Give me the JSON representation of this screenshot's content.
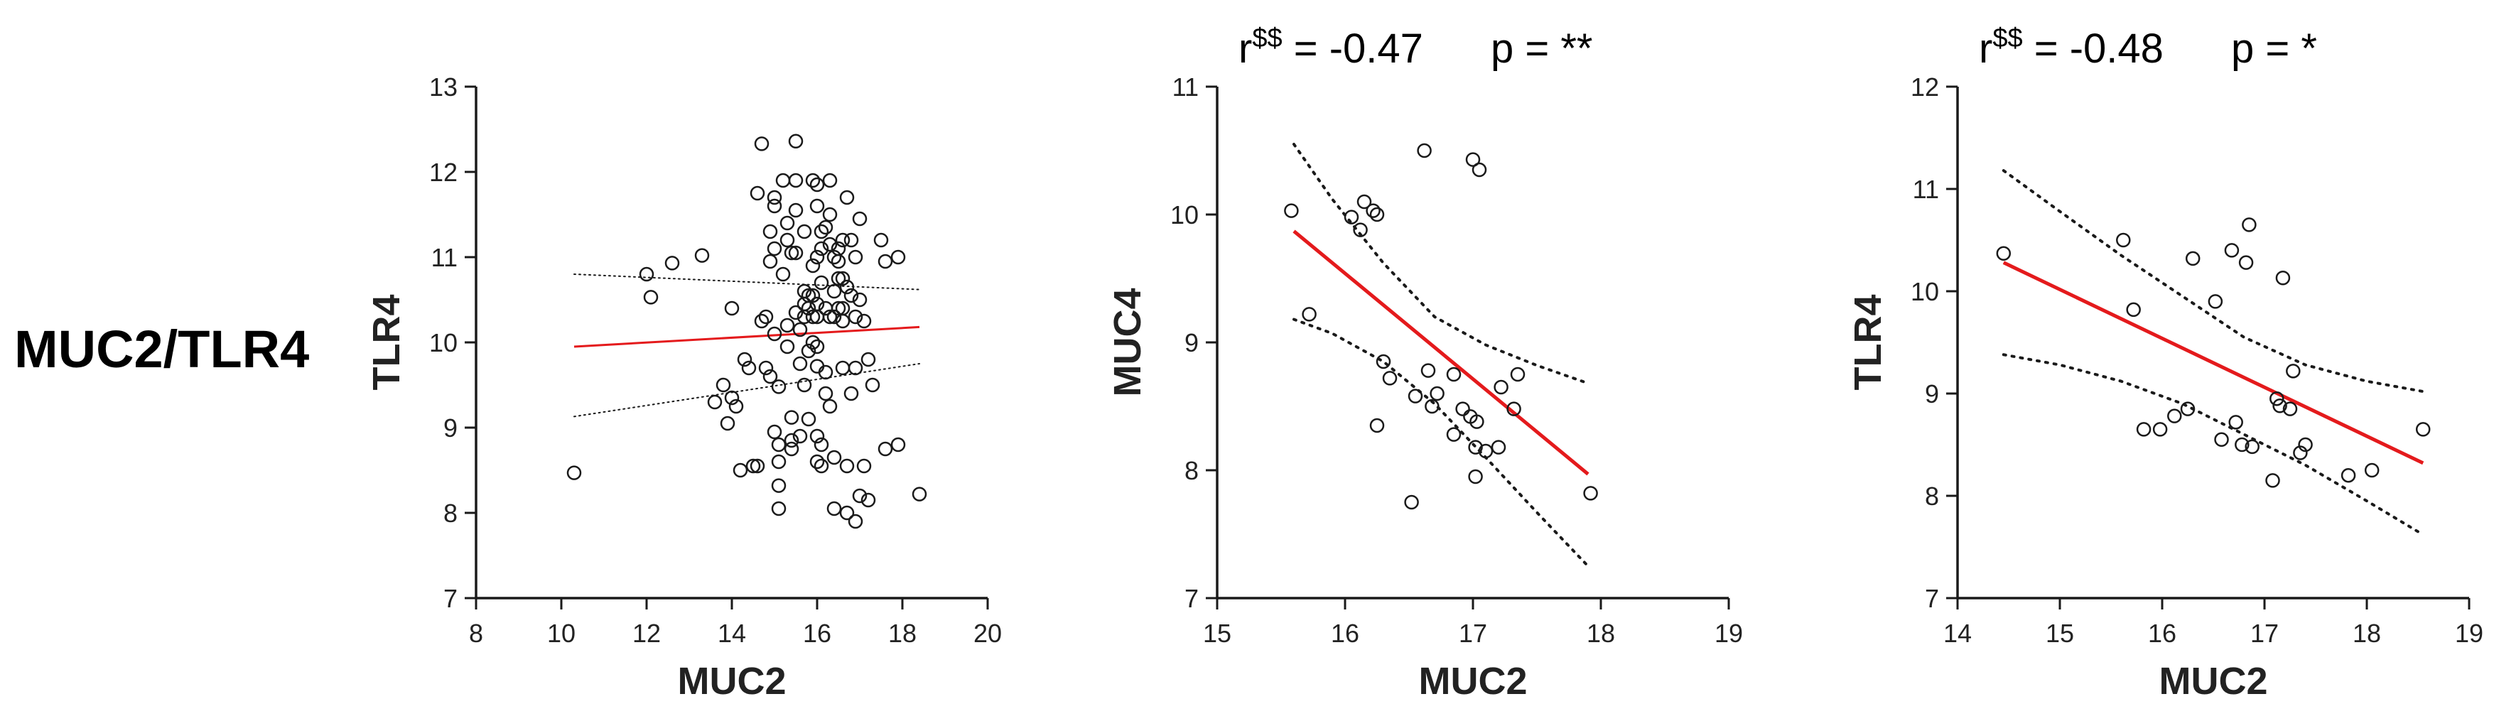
{
  "row_label": "MUC2/TLR4",
  "chart_data": [
    {
      "type": "scatter",
      "title": "",
      "xlabel": "MUC2",
      "ylabel": "TLR4",
      "xlim": [
        8,
        20
      ],
      "ylim": [
        7,
        13
      ],
      "xticks": [
        8,
        10,
        12,
        14,
        16,
        18,
        20
      ],
      "yticks": [
        7,
        8,
        9,
        10,
        11,
        12,
        13
      ],
      "regression": {
        "x": [
          10.3,
          18.4
        ],
        "y": [
          9.95,
          10.18
        ],
        "color": "#e41a1c",
        "thin": true
      },
      "confidence_band": {
        "upper": {
          "x": [
            10.3,
            18.4
          ],
          "y": [
            10.8,
            10.62
          ]
        },
        "lower": {
          "x": [
            10.3,
            18.4
          ],
          "y": [
            9.13,
            9.75
          ]
        }
      },
      "stats": null,
      "points": [
        [
          10.3,
          8.47
        ],
        [
          12.0,
          10.8
        ],
        [
          12.1,
          10.53
        ],
        [
          12.6,
          10.93
        ],
        [
          13.3,
          11.02
        ],
        [
          13.6,
          9.3
        ],
        [
          13.8,
          9.5
        ],
        [
          13.9,
          9.05
        ],
        [
          14.0,
          10.4
        ],
        [
          14.0,
          9.35
        ],
        [
          14.1,
          9.25
        ],
        [
          14.2,
          8.5
        ],
        [
          14.3,
          9.8
        ],
        [
          14.4,
          9.7
        ],
        [
          14.5,
          8.55
        ],
        [
          14.6,
          11.75
        ],
        [
          14.6,
          8.55
        ],
        [
          14.7,
          10.25
        ],
        [
          14.7,
          12.33
        ],
        [
          14.8,
          10.3
        ],
        [
          14.8,
          9.7
        ],
        [
          14.9,
          9.6
        ],
        [
          14.9,
          10.95
        ],
        [
          14.9,
          11.3
        ],
        [
          15.0,
          11.6
        ],
        [
          15.0,
          11.7
        ],
        [
          15.0,
          11.1
        ],
        [
          15.0,
          10.1
        ],
        [
          15.0,
          8.95
        ],
        [
          15.1,
          8.8
        ],
        [
          15.1,
          8.6
        ],
        [
          15.1,
          8.32
        ],
        [
          15.1,
          8.05
        ],
        [
          15.1,
          9.48
        ],
        [
          15.2,
          11.9
        ],
        [
          15.2,
          10.8
        ],
        [
          15.3,
          11.4
        ],
        [
          15.3,
          11.2
        ],
        [
          15.3,
          10.2
        ],
        [
          15.3,
          9.95
        ],
        [
          15.4,
          11.05
        ],
        [
          15.4,
          9.12
        ],
        [
          15.4,
          8.85
        ],
        [
          15.4,
          8.75
        ],
        [
          15.5,
          12.36
        ],
        [
          15.5,
          11.9
        ],
        [
          15.5,
          11.55
        ],
        [
          15.5,
          11.05
        ],
        [
          15.5,
          10.35
        ],
        [
          15.6,
          10.15
        ],
        [
          15.6,
          9.75
        ],
        [
          15.6,
          8.9
        ],
        [
          15.7,
          11.3
        ],
        [
          15.7,
          10.6
        ],
        [
          15.7,
          10.45
        ],
        [
          15.7,
          10.3
        ],
        [
          15.7,
          9.5
        ],
        [
          15.8,
          10.55
        ],
        [
          15.8,
          10.4
        ],
        [
          15.8,
          9.9
        ],
        [
          15.8,
          9.1
        ],
        [
          15.9,
          11.9
        ],
        [
          15.9,
          10.9
        ],
        [
          15.9,
          10.55
        ],
        [
          15.9,
          10.3
        ],
        [
          15.9,
          10.0
        ],
        [
          16.0,
          11.85
        ],
        [
          16.0,
          11.6
        ],
        [
          16.0,
          11.0
        ],
        [
          16.0,
          10.45
        ],
        [
          16.0,
          10.3
        ],
        [
          16.0,
          9.95
        ],
        [
          16.0,
          9.72
        ],
        [
          16.0,
          8.6
        ],
        [
          16.0,
          8.9
        ],
        [
          16.1,
          11.3
        ],
        [
          16.1,
          11.1
        ],
        [
          16.1,
          10.7
        ],
        [
          16.1,
          8.8
        ],
        [
          16.1,
          8.55
        ],
        [
          16.2,
          11.35
        ],
        [
          16.2,
          10.4
        ],
        [
          16.2,
          9.65
        ],
        [
          16.2,
          9.4
        ],
        [
          16.3,
          11.9
        ],
        [
          16.3,
          11.5
        ],
        [
          16.3,
          11.15
        ],
        [
          16.3,
          10.3
        ],
        [
          16.3,
          9.25
        ],
        [
          16.4,
          11.0
        ],
        [
          16.4,
          10.6
        ],
        [
          16.4,
          10.3
        ],
        [
          16.4,
          8.65
        ],
        [
          16.4,
          8.05
        ],
        [
          16.5,
          11.1
        ],
        [
          16.5,
          10.95
        ],
        [
          16.5,
          10.75
        ],
        [
          16.5,
          10.4
        ],
        [
          16.6,
          11.2
        ],
        [
          16.6,
          10.75
        ],
        [
          16.6,
          10.4
        ],
        [
          16.6,
          10.25
        ],
        [
          16.6,
          9.7
        ],
        [
          16.7,
          11.7
        ],
        [
          16.7,
          10.65
        ],
        [
          16.7,
          8.55
        ],
        [
          16.7,
          8.0
        ],
        [
          16.8,
          11.2
        ],
        [
          16.8,
          10.55
        ],
        [
          16.8,
          9.4
        ],
        [
          16.9,
          11.0
        ],
        [
          16.9,
          10.3
        ],
        [
          16.9,
          9.7
        ],
        [
          16.9,
          7.9
        ],
        [
          17.0,
          11.45
        ],
        [
          17.0,
          10.5
        ],
        [
          17.0,
          8.2
        ],
        [
          17.1,
          10.25
        ],
        [
          17.1,
          8.55
        ],
        [
          17.2,
          9.8
        ],
        [
          17.2,
          8.15
        ],
        [
          17.3,
          9.5
        ],
        [
          17.5,
          11.2
        ],
        [
          17.6,
          10.95
        ],
        [
          17.6,
          8.75
        ],
        [
          17.9,
          11.0
        ],
        [
          17.9,
          8.8
        ],
        [
          18.4,
          8.22
        ]
      ]
    },
    {
      "type": "scatter",
      "title": "",
      "xlabel": "MUC2",
      "ylabel": "MUC4",
      "xlim": [
        15,
        19
      ],
      "ylim": [
        7,
        11
      ],
      "xticks": [
        15,
        16,
        17,
        18,
        19
      ],
      "yticks": [
        7,
        8,
        9,
        10,
        11
      ],
      "regression": {
        "x": [
          15.6,
          17.9
        ],
        "y": [
          9.87,
          7.97
        ],
        "color": "#e41a1c",
        "thin": false
      },
      "confidence_band": {
        "upper": {
          "x": [
            15.6,
            15.9,
            16.3,
            16.7,
            17.1,
            17.5,
            17.9
          ],
          "y": [
            10.55,
            10.12,
            9.62,
            9.2,
            8.98,
            8.82,
            8.68
          ]
        },
        "lower": {
          "x": [
            15.6,
            15.9,
            16.3,
            16.7,
            17.1,
            17.5,
            17.9
          ],
          "y": [
            9.18,
            9.07,
            8.85,
            8.52,
            8.1,
            7.67,
            7.25
          ]
        }
      },
      "stats": {
        "r_label": "r",
        "r_sup": "$$",
        "r_value": "= -0.47",
        "p_label": "p =",
        "p_value": "**"
      },
      "points": [
        [
          15.58,
          10.03
        ],
        [
          15.72,
          9.22
        ],
        [
          16.05,
          9.98
        ],
        [
          16.12,
          9.88
        ],
        [
          16.15,
          10.1
        ],
        [
          16.22,
          10.03
        ],
        [
          16.25,
          10.0
        ],
        [
          16.25,
          8.35
        ],
        [
          16.3,
          8.85
        ],
        [
          16.35,
          8.72
        ],
        [
          16.52,
          7.75
        ],
        [
          16.55,
          8.58
        ],
        [
          16.62,
          10.5
        ],
        [
          16.65,
          8.78
        ],
        [
          16.68,
          8.5
        ],
        [
          16.72,
          8.6
        ],
        [
          16.85,
          8.75
        ],
        [
          16.85,
          8.28
        ],
        [
          16.92,
          8.48
        ],
        [
          16.98,
          8.42
        ],
        [
          17.0,
          10.43
        ],
        [
          17.02,
          8.18
        ],
        [
          17.03,
          8.38
        ],
        [
          17.05,
          10.35
        ],
        [
          17.02,
          7.95
        ],
        [
          17.1,
          8.15
        ],
        [
          17.2,
          8.18
        ],
        [
          17.22,
          8.65
        ],
        [
          17.32,
          8.48
        ],
        [
          17.35,
          8.75
        ],
        [
          17.92,
          7.82
        ]
      ]
    },
    {
      "type": "scatter",
      "title": "",
      "xlabel": "MUC2",
      "ylabel": "TLR4",
      "xlim": [
        14,
        19
      ],
      "ylim": [
        7,
        12
      ],
      "xticks": [
        14,
        15,
        16,
        17,
        18,
        19
      ],
      "yticks": [
        7,
        8,
        9,
        10,
        11,
        12
      ],
      "regression": {
        "x": [
          14.45,
          18.55
        ],
        "y": [
          10.28,
          8.32
        ],
        "color": "#e41a1c",
        "thin": false
      },
      "confidence_band": {
        "upper": {
          "x": [
            14.45,
            15.0,
            15.6,
            16.2,
            16.8,
            17.4,
            18.0,
            18.55
          ],
          "y": [
            11.18,
            10.78,
            10.35,
            9.95,
            9.55,
            9.28,
            9.12,
            9.02
          ]
        },
        "lower": {
          "x": [
            14.45,
            15.0,
            15.6,
            16.2,
            16.8,
            17.4,
            18.0,
            18.55
          ],
          "y": [
            9.38,
            9.28,
            9.12,
            8.9,
            8.6,
            8.3,
            7.95,
            7.62
          ]
        }
      },
      "stats": {
        "r_label": "r",
        "r_sup": "$$",
        "r_value": "= -0.48",
        "p_label": "p =",
        "p_value": "*"
      },
      "points": [
        [
          14.45,
          10.37
        ],
        [
          15.62,
          10.5
        ],
        [
          15.72,
          9.82
        ],
        [
          15.82,
          8.65
        ],
        [
          15.98,
          8.65
        ],
        [
          16.12,
          8.78
        ],
        [
          16.25,
          8.85
        ],
        [
          16.3,
          10.32
        ],
        [
          16.52,
          9.9
        ],
        [
          16.58,
          8.55
        ],
        [
          16.68,
          10.4
        ],
        [
          16.72,
          8.72
        ],
        [
          16.78,
          8.5
        ],
        [
          16.82,
          10.28
        ],
        [
          16.85,
          10.65
        ],
        [
          16.88,
          8.48
        ],
        [
          17.08,
          8.15
        ],
        [
          17.12,
          8.95
        ],
        [
          17.15,
          8.88
        ],
        [
          17.18,
          10.13
        ],
        [
          17.25,
          8.85
        ],
        [
          17.28,
          9.22
        ],
        [
          17.35,
          8.42
        ],
        [
          17.4,
          8.5
        ],
        [
          17.82,
          8.2
        ],
        [
          18.05,
          8.25
        ],
        [
          18.55,
          8.65
        ]
      ]
    }
  ]
}
